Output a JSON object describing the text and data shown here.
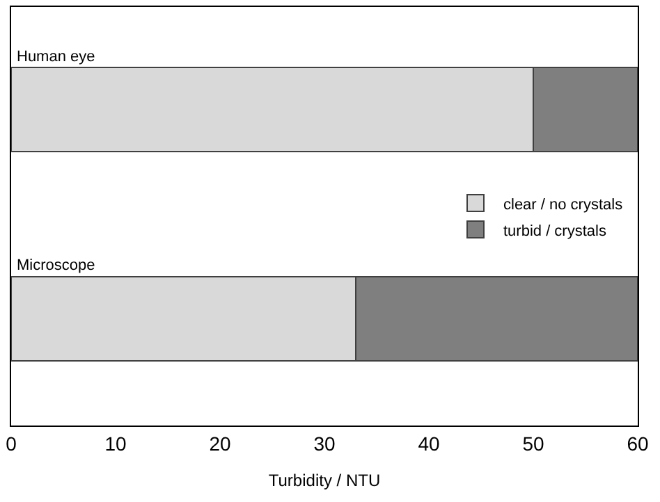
{
  "chart_data": {
    "type": "bar",
    "orientation": "horizontal",
    "stacked": true,
    "categories": [
      "Human eye",
      "Microscope"
    ],
    "series": [
      {
        "name": "clear / no crystals",
        "color": "#d9d9d9",
        "values": [
          50,
          33
        ]
      },
      {
        "name": "turbid / crystals",
        "color": "#7f7f7f",
        "values": [
          10,
          27
        ]
      }
    ],
    "xlabel": "Turbidity / NTU",
    "xlim": [
      0,
      60
    ],
    "xticks": [
      0,
      10,
      20,
      30,
      40,
      50,
      60
    ],
    "legend": "right"
  }
}
